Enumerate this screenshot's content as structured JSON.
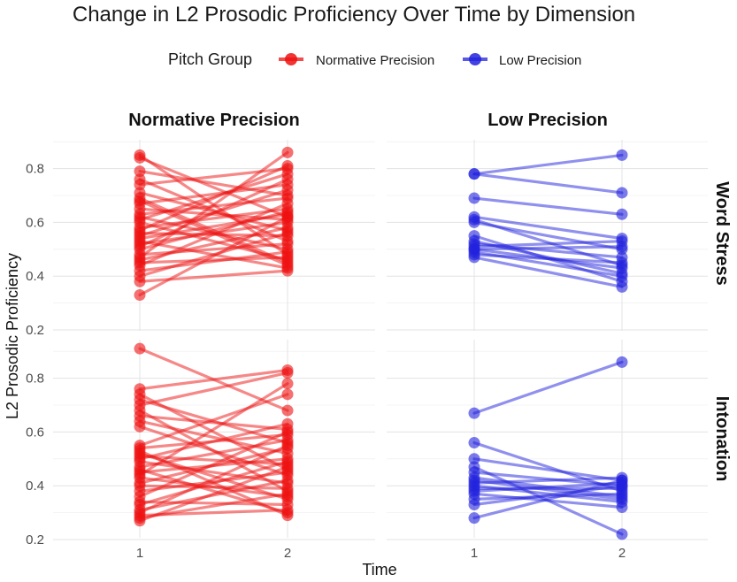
{
  "chart_data": {
    "type": "line",
    "title": "Change in L2 Prosodic Proficiency Over Time by Dimension",
    "xlabel": "Time",
    "ylabel": "L2 Prosodic Proficiency",
    "x": [
      1,
      2
    ],
    "x_ticks": [
      "1",
      "2"
    ],
    "ylim": [
      0.2,
      0.9
    ],
    "y_ticks": [
      "0.2",
      "0.4",
      "0.6",
      "0.8"
    ],
    "legend": {
      "title": "Pitch Group",
      "entries": [
        {
          "label": "Normative Precision",
          "color": "#ee1111"
        },
        {
          "label": "Low Precision",
          "color": "#2222dd"
        }
      ]
    },
    "columns": [
      "Normative Precision",
      "Low Precision"
    ],
    "rows": [
      "Word Stress",
      "Intonation"
    ],
    "panels": [
      {
        "row": "Word Stress",
        "column": "Normative Precision",
        "color": "#ee1111",
        "series": [
          [
            0.85,
            0.48
          ],
          [
            0.84,
            0.62
          ],
          [
            0.79,
            0.7
          ],
          [
            0.76,
            0.53
          ],
          [
            0.74,
            0.8
          ],
          [
            0.71,
            0.57
          ],
          [
            0.68,
            0.44
          ],
          [
            0.67,
            0.74
          ],
          [
            0.65,
            0.61
          ],
          [
            0.63,
            0.69
          ],
          [
            0.62,
            0.5
          ],
          [
            0.61,
            0.78
          ],
          [
            0.6,
            0.46
          ],
          [
            0.58,
            0.65
          ],
          [
            0.56,
            0.55
          ],
          [
            0.55,
            0.72
          ],
          [
            0.53,
            0.43
          ],
          [
            0.52,
            0.6
          ],
          [
            0.51,
            0.76
          ],
          [
            0.5,
            0.64
          ],
          [
            0.48,
            0.52
          ],
          [
            0.47,
            0.86
          ],
          [
            0.46,
            0.58
          ],
          [
            0.45,
            0.47
          ],
          [
            0.44,
            0.67
          ],
          [
            0.42,
            0.49
          ],
          [
            0.4,
            0.56
          ],
          [
            0.38,
            0.42
          ],
          [
            0.33,
            0.62
          ],
          [
            0.57,
            0.81
          ],
          [
            0.69,
            0.45
          ],
          [
            0.54,
            0.63
          ]
        ]
      },
      {
        "row": "Word Stress",
        "column": "Low Precision",
        "color": "#2222dd",
        "series": [
          [
            0.78,
            0.85
          ],
          [
            0.78,
            0.71
          ],
          [
            0.69,
            0.63
          ],
          [
            0.62,
            0.54
          ],
          [
            0.61,
            0.44
          ],
          [
            0.6,
            0.5
          ],
          [
            0.55,
            0.38
          ],
          [
            0.53,
            0.41
          ],
          [
            0.52,
            0.47
          ],
          [
            0.51,
            0.53
          ],
          [
            0.5,
            0.43
          ],
          [
            0.49,
            0.4
          ],
          [
            0.48,
            0.45
          ],
          [
            0.47,
            0.36
          ],
          [
            0.5,
            0.51
          ]
        ]
      },
      {
        "row": "Intonation",
        "column": "Normative Precision",
        "color": "#ee1111",
        "series": [
          [
            0.91,
            0.68
          ],
          [
            0.76,
            0.83
          ],
          [
            0.74,
            0.46
          ],
          [
            0.72,
            0.56
          ],
          [
            0.7,
            0.82
          ],
          [
            0.68,
            0.38
          ],
          [
            0.66,
            0.61
          ],
          [
            0.64,
            0.52
          ],
          [
            0.62,
            0.44
          ],
          [
            0.55,
            0.74
          ],
          [
            0.54,
            0.59
          ],
          [
            0.52,
            0.35
          ],
          [
            0.51,
            0.48
          ],
          [
            0.5,
            0.63
          ],
          [
            0.49,
            0.41
          ],
          [
            0.47,
            0.57
          ],
          [
            0.46,
            0.3
          ],
          [
            0.45,
            0.5
          ],
          [
            0.44,
            0.78
          ],
          [
            0.43,
            0.36
          ],
          [
            0.41,
            0.54
          ],
          [
            0.4,
            0.39
          ],
          [
            0.38,
            0.45
          ],
          [
            0.36,
            0.6
          ],
          [
            0.34,
            0.33
          ],
          [
            0.33,
            0.49
          ],
          [
            0.31,
            0.42
          ],
          [
            0.3,
            0.55
          ],
          [
            0.29,
            0.31
          ],
          [
            0.28,
            0.37
          ],
          [
            0.27,
            0.47
          ],
          [
            0.53,
            0.29
          ]
        ]
      },
      {
        "row": "Intonation",
        "column": "Low Precision",
        "color": "#2222dd",
        "series": [
          [
            0.67,
            0.86
          ],
          [
            0.56,
            0.38
          ],
          [
            0.5,
            0.42
          ],
          [
            0.47,
            0.22
          ],
          [
            0.45,
            0.4
          ],
          [
            0.43,
            0.36
          ],
          [
            0.41,
            0.43
          ],
          [
            0.4,
            0.34
          ],
          [
            0.39,
            0.39
          ],
          [
            0.38,
            0.41
          ],
          [
            0.37,
            0.32
          ],
          [
            0.35,
            0.37
          ],
          [
            0.33,
            0.4
          ],
          [
            0.28,
            0.42
          ],
          [
            0.42,
            0.35
          ]
        ]
      }
    ]
  }
}
